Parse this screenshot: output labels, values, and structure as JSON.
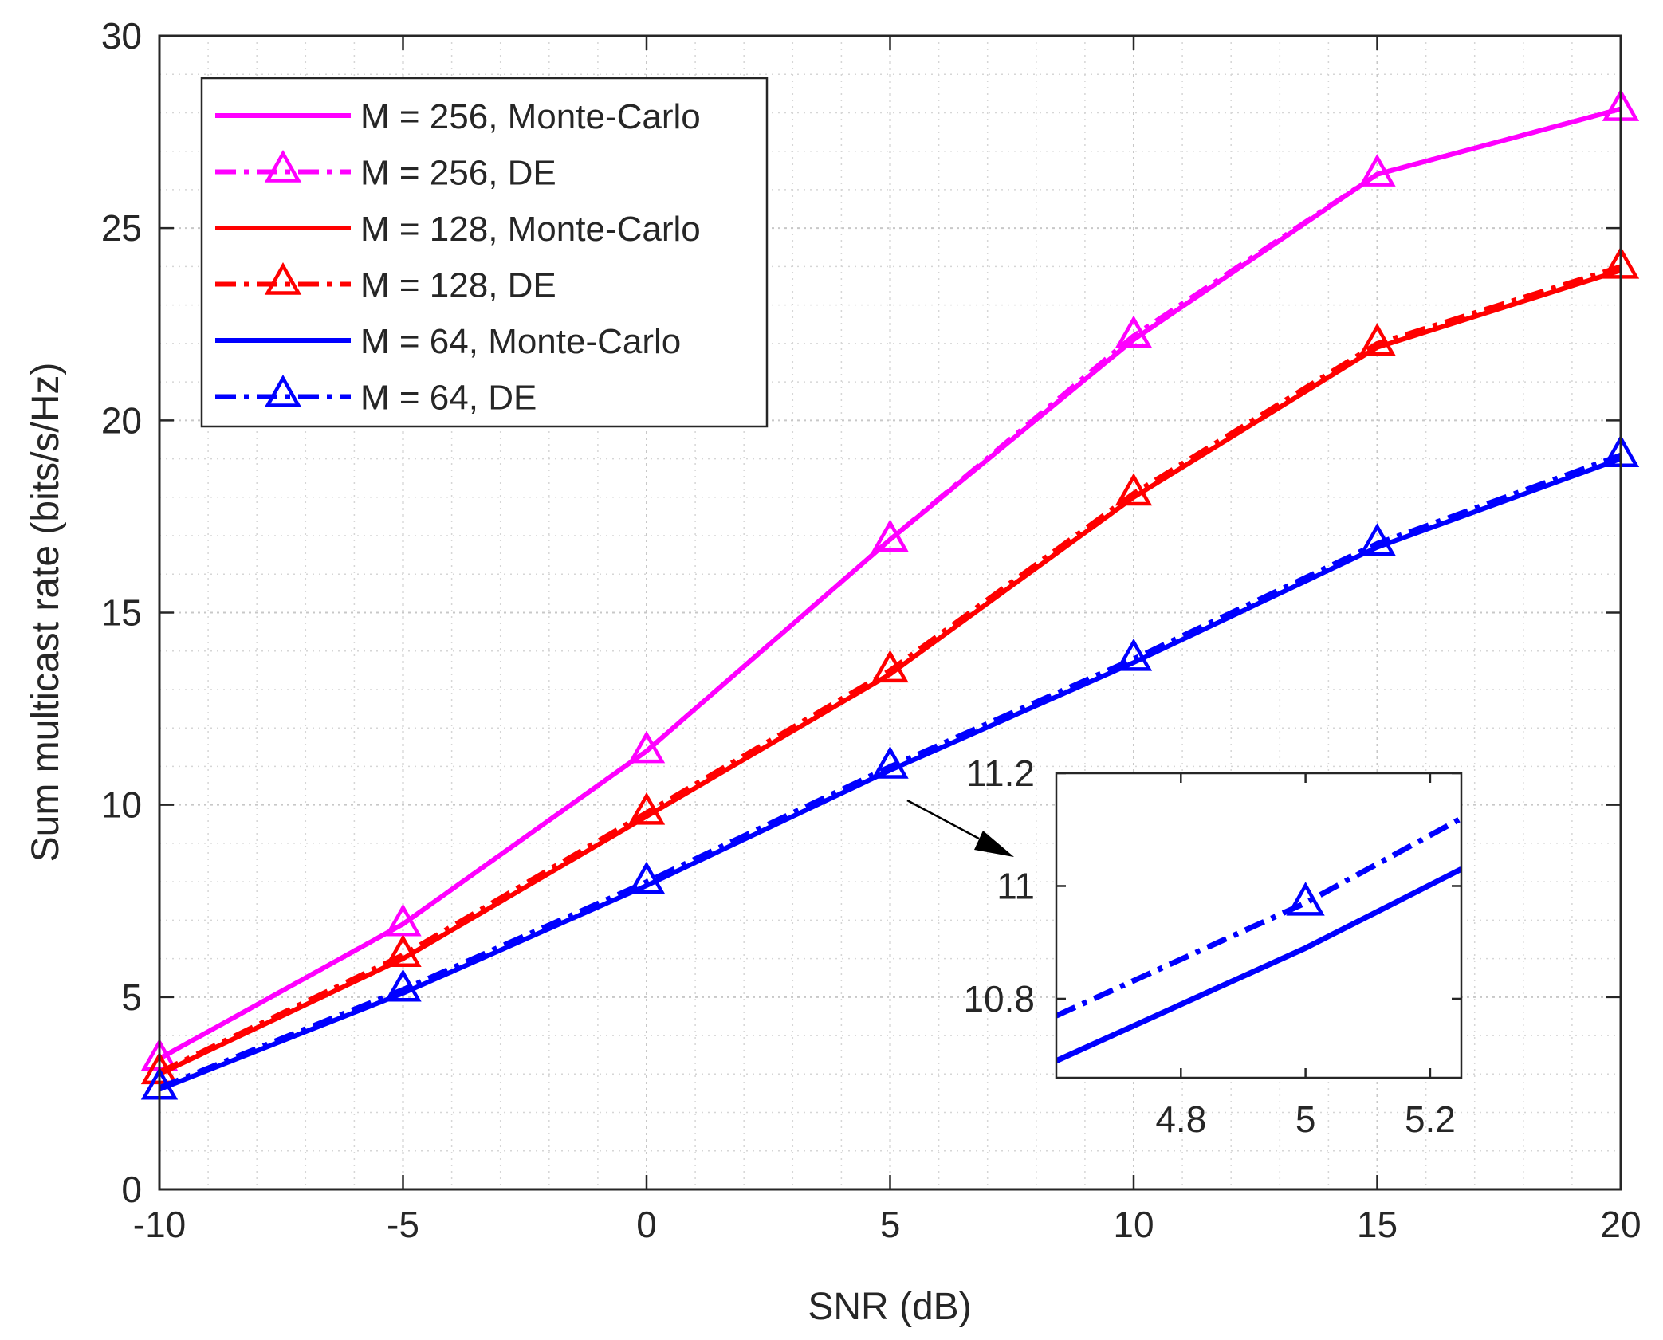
{
  "chart_data": [
    {
      "type": "line",
      "title": "",
      "xlabel": "SNR (dB)",
      "ylabel": "Sum multicast rate (bits/s/Hz)",
      "xlim": [
        -10,
        20
      ],
      "ylim": [
        0,
        30
      ],
      "xticks": [
        -10,
        -5,
        0,
        5,
        10,
        15,
        20
      ],
      "xtick_labels": [
        "-10",
        "-5",
        "0",
        "5",
        "10",
        "15",
        "20"
      ],
      "yticks": [
        0,
        5,
        10,
        15,
        20,
        25,
        30
      ],
      "ytick_labels": [
        "0",
        "5",
        "10",
        "15",
        "20",
        "25",
        "30"
      ],
      "grid": true,
      "minor_grid": true,
      "legend_position": "top-left",
      "x": [
        -10,
        -5,
        0,
        5,
        10,
        15,
        20
      ],
      "series": [
        {
          "name": "M = 256, Monte-Carlo",
          "color": "#ff00ff",
          "style": "solid",
          "marker": "none",
          "values": [
            3.4,
            6.9,
            11.4,
            16.9,
            22.1,
            26.4,
            28.1
          ]
        },
        {
          "name": "M = 256, DE",
          "color": "#ff00ff",
          "style": "dashdot",
          "marker": "triangle",
          "values": [
            3.4,
            6.9,
            11.4,
            16.9,
            22.2,
            26.4,
            28.1
          ]
        },
        {
          "name": "M = 128, Monte-Carlo",
          "color": "#ff0000",
          "style": "solid",
          "marker": "none",
          "values": [
            3.0,
            6.0,
            9.7,
            13.4,
            18.0,
            21.9,
            23.9
          ]
        },
        {
          "name": "M = 128, DE",
          "color": "#ff0000",
          "style": "dashdot",
          "marker": "triangle",
          "values": [
            3.05,
            6.1,
            9.8,
            13.5,
            18.1,
            22.0,
            24.0
          ]
        },
        {
          "name": "M = 64, Monte-Carlo",
          "color": "#0000ff",
          "style": "solid",
          "marker": "none",
          "values": [
            2.6,
            5.1,
            7.9,
            10.9,
            13.7,
            16.7,
            19.0
          ]
        },
        {
          "name": "M = 64, DE",
          "color": "#0000ff",
          "style": "dashdot",
          "marker": "triangle",
          "values": [
            2.65,
            5.2,
            8.0,
            11.0,
            13.8,
            16.8,
            19.1
          ]
        }
      ]
    },
    {
      "type": "line",
      "title": "",
      "role": "inset zoom around SNR = 5 dB, M = 64",
      "xlim": [
        4.6,
        5.25
      ],
      "ylim": [
        10.66,
        11.2
      ],
      "xticks": [
        4.8,
        5.0,
        5.2
      ],
      "xtick_labels": [
        "4.8",
        "5",
        "5.2"
      ],
      "yticks": [
        10.8,
        11.0,
        11.2
      ],
      "ytick_labels": [
        "10.8",
        "11",
        "11.2"
      ],
      "grid": false,
      "series": [
        {
          "name": "M = 64, DE",
          "color": "#0000ff",
          "style": "dashdot",
          "marker": "triangle",
          "x": [
            4.6,
            5.0,
            5.25
          ],
          "values": [
            10.77,
            10.97,
            11.12
          ],
          "marker_x": [
            5.0
          ]
        },
        {
          "name": "M = 64, Monte-Carlo",
          "color": "#0000ff",
          "style": "solid",
          "marker": "none",
          "x": [
            4.6,
            5.0,
            5.25
          ],
          "values": [
            10.69,
            10.89,
            11.03
          ]
        }
      ]
    }
  ]
}
